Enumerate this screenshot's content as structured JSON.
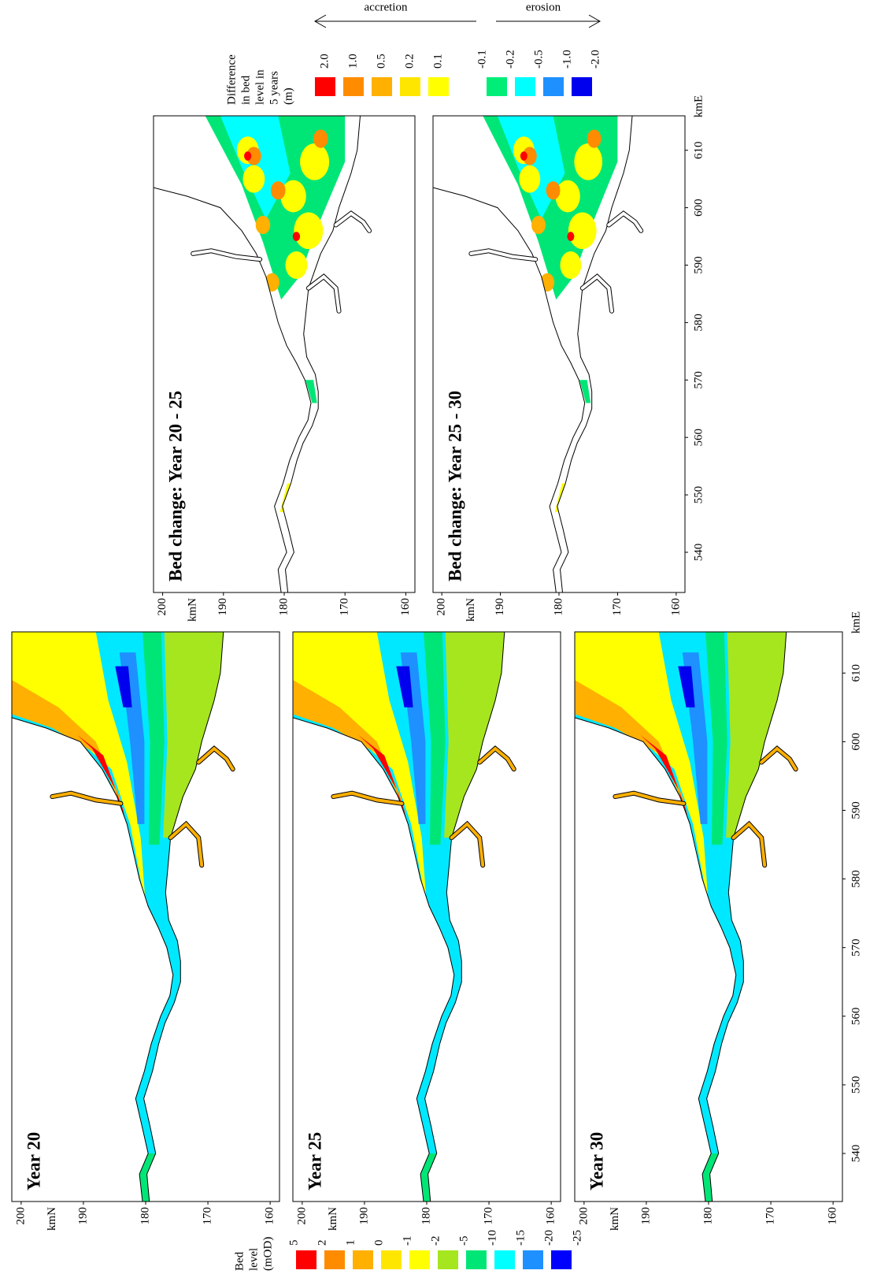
{
  "panels": [
    {
      "title": "Year 20"
    },
    {
      "title": "Year 25"
    },
    {
      "title": "Year 30"
    }
  ],
  "change_panels": [
    {
      "title": "Bed change: Year 20 - 25"
    },
    {
      "title": "Bed change: Year 25 - 30"
    }
  ],
  "axes": {
    "x_label": "kmE",
    "y_label": "kmN",
    "xticks": [
      540,
      550,
      560,
      570,
      580,
      590,
      600,
      610
    ],
    "yticks": [
      200,
      190,
      180,
      170,
      160
    ]
  },
  "bed_level_legend": {
    "title": [
      "Bed",
      "level",
      "(mOD)"
    ],
    "labels": [
      "5",
      "2",
      "1",
      "0",
      "-1",
      "-2",
      "-5",
      "-10",
      "-15",
      "-20",
      "-25"
    ],
    "colors": [
      "#ff0000",
      "#ff8c00",
      "#ffb000",
      "#ffe600",
      "#ffff00",
      "#a6e61e",
      "#00e676",
      "#00ffff",
      "#1e90ff",
      "#0000ff"
    ]
  },
  "difference_legend": {
    "title": [
      "Difference",
      "in bed",
      "level in",
      "5 years",
      "(m)"
    ],
    "accretion": {
      "name": "accretion",
      "labels": [
        "2.0",
        "1.0",
        "0.5",
        "0.2",
        "0.1"
      ],
      "colors": [
        "#ff0000",
        "#ff8c00",
        "#ffb000",
        "#ffe600",
        "#ffff00"
      ]
    },
    "erosion": {
      "name": "erosion",
      "labels": [
        "-0.1",
        "-0.2",
        "-0.5",
        "-1.0",
        "-2.0"
      ],
      "colors": [
        "#00ee77",
        "#00ffff",
        "#1e90ff",
        "#0000ee"
      ]
    }
  }
}
